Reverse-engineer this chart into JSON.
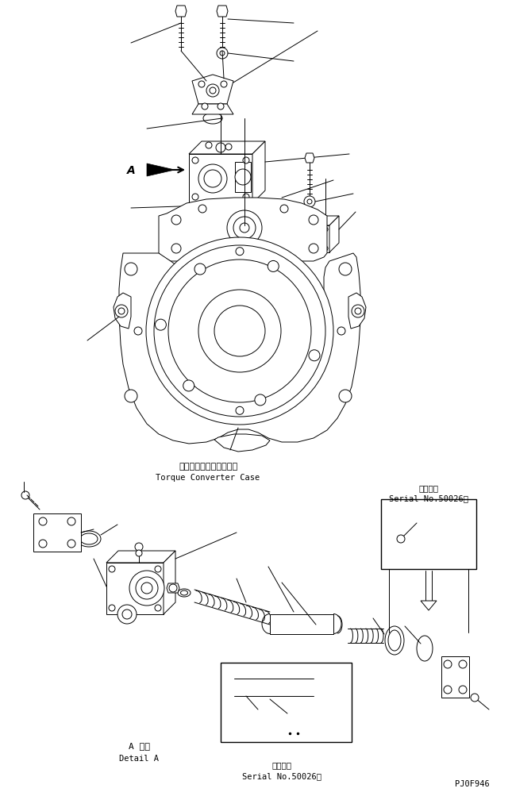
{
  "bg_color": "#ffffff",
  "line_color": "#000000",
  "title_jp": "トルクコンバータケース",
  "title_en": "Torque Converter Case",
  "label_a_detail_jp": "A 詳細",
  "label_a_detail_en": "Detail A",
  "serial_jp": "適用号機",
  "serial_en": "Serial No.50026～",
  "part_no": "PJ0F946",
  "fig_width": 6.45,
  "fig_height": 10.04
}
